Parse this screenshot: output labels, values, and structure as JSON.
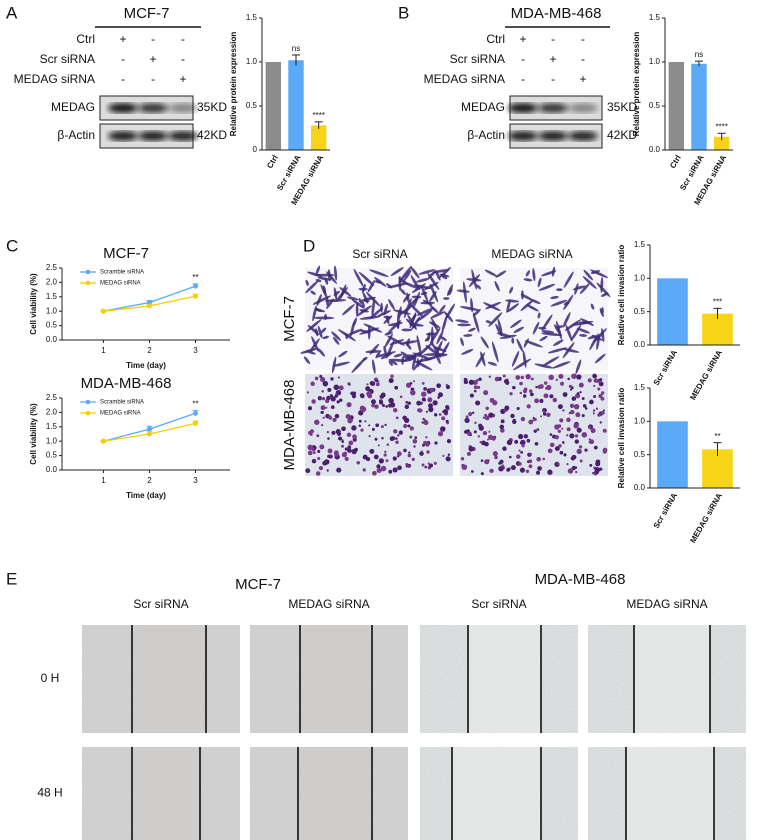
{
  "panels": {
    "A": {
      "label": "A",
      "title": "MCF-7",
      "rows": [
        "Ctrl",
        "Scr siRNA",
        "MEDAG siRNA"
      ],
      "signs": [
        [
          "+",
          "-",
          "-"
        ],
        [
          "-",
          "+",
          "-"
        ],
        [
          "-",
          "-",
          "+"
        ]
      ],
      "blots": [
        {
          "name": "MEDAG",
          "size": "35KD"
        },
        {
          "name": "β-Actin",
          "size": "42KD"
        }
      ]
    },
    "B": {
      "label": "B",
      "title": "MDA-MB-468",
      "rows": [
        "Ctrl",
        "Scr siRNA",
        "MEDAG siRNA"
      ],
      "signs": [
        [
          "+",
          "-",
          "-"
        ],
        [
          "-",
          "+",
          "-"
        ],
        [
          "-",
          "-",
          "+"
        ]
      ],
      "blots": [
        {
          "name": "MEDAG",
          "size": "35KD"
        },
        {
          "name": "β-Actin",
          "size": "42KD"
        }
      ]
    },
    "C": {
      "label": "C"
    },
    "D": {
      "label": "D",
      "columns": [
        "Scr siRNA",
        "MEDAG siRNA"
      ],
      "rows": [
        "MCF-7",
        "MDA-MB-468"
      ]
    },
    "E": {
      "label": "E",
      "groups": [
        "MCF-7",
        "MDA-MB-468"
      ],
      "columns": [
        "Scr siRNA",
        "MEDAG siRNA",
        "Scr siRNA",
        "MEDAG siRNA"
      ],
      "rows": [
        "0 H",
        "48 H"
      ]
    }
  },
  "chart_data": [
    {
      "type": "bar",
      "ylabel": "Relative protein expression",
      "categories": [
        "Ctrl",
        "Scr siRNA",
        "MEDAG siRNA"
      ],
      "values": [
        1.0,
        1.02,
        0.28
      ],
      "errors": [
        0,
        0.06,
        0.04
      ],
      "colors": [
        "#8c8c8c",
        "#5aaaf7",
        "#f7d417"
      ],
      "annotations": [
        {
          "index": 1,
          "text": "ns"
        },
        {
          "index": 2,
          "text": "****"
        }
      ],
      "ylim": [
        0,
        1.5
      ],
      "yticks": [
        0,
        0.5,
        {
          "value": 1,
          "label": "1.0"
        },
        1.5
      ]
    },
    {
      "type": "bar",
      "ylabel": "Relative protein expression",
      "categories": [
        "Ctrl",
        "Scr siRNA",
        "MEDAG siRNA"
      ],
      "values": [
        1.0,
        0.98,
        0.15
      ],
      "errors": [
        0,
        0.03,
        0.04
      ],
      "colors": [
        "#8c8c8c",
        "#5aaaf7",
        "#f7d417"
      ],
      "annotations": [
        {
          "index": 1,
          "text": "ns"
        },
        {
          "index": 2,
          "text": "****"
        }
      ],
      "ylim": [
        0,
        1.5
      ],
      "yticks": [
        {
          "value": 0,
          "label": "0.0"
        },
        0.5,
        {
          "value": 1,
          "label": "1.0"
        },
        1.5
      ]
    },
    {
      "type": "line",
      "title": "MCF-7",
      "xlabel": "Time (day)",
      "ylabel": "Cell viability (%)",
      "x": [
        1,
        2,
        3
      ],
      "xlim": [
        0.1,
        3.75
      ],
      "xticks": [
        1,
        2,
        3
      ],
      "ylim": [
        0,
        2.5
      ],
      "yticks": [
        {
          "value": 0,
          "label": "0.0"
        },
        0.5,
        {
          "value": 1,
          "label": "1.0"
        },
        1.5,
        {
          "value": 2,
          "label": "2.0"
        },
        2.5
      ],
      "series": [
        {
          "name": "Scramble siRNA",
          "color": "#5aaaf7",
          "values": [
            1.0,
            1.3,
            1.87
          ],
          "errors": [
            0.02,
            0.07,
            0.08
          ]
        },
        {
          "name": "MEDAG siRNA",
          "color": "#f5d000",
          "values": [
            1.0,
            1.18,
            1.52
          ],
          "errors": [
            0.02,
            0.05,
            0.07
          ]
        }
      ],
      "annotations": [
        {
          "x": 3,
          "text": "**"
        }
      ]
    },
    {
      "type": "line",
      "title": "MDA-MB-468",
      "xlabel": "Time (day)",
      "ylabel": "Cell viability (%)",
      "x": [
        1,
        2,
        3
      ],
      "xlim": [
        0.1,
        3.75
      ],
      "xticks": [
        1,
        2,
        3
      ],
      "ylim": [
        0,
        2.5
      ],
      "yticks": [
        {
          "value": 0,
          "label": "0.0"
        },
        0.5,
        {
          "value": 1,
          "label": "1.0"
        },
        1.5,
        {
          "value": 2,
          "label": "2.0"
        },
        2.5
      ],
      "series": [
        {
          "name": "Scramble siRNA",
          "color": "#5aaaf7",
          "values": [
            1.0,
            1.42,
            1.97
          ],
          "errors": [
            0.02,
            0.1,
            0.1
          ]
        },
        {
          "name": "MEDAG siRNA",
          "color": "#f5d000",
          "values": [
            1.0,
            1.25,
            1.62
          ],
          "errors": [
            0.02,
            0.08,
            0.08
          ]
        }
      ],
      "annotations": [
        {
          "x": 3,
          "text": "**"
        }
      ]
    },
    {
      "type": "bar",
      "ylabel": "Relative cell invasion ratio",
      "categories": [
        "Scr siRNA",
        "MEDAG siRNA"
      ],
      "values": [
        1.0,
        0.47
      ],
      "errors": [
        0,
        0.08
      ],
      "colors": [
        "#5aaaf7",
        "#f7d417"
      ],
      "annotations": [
        {
          "index": 1,
          "text": "***"
        }
      ],
      "ylim": [
        0,
        1.5
      ],
      "yticks": [
        {
          "value": 0,
          "label": "0.0"
        },
        0.5,
        {
          "value": 1,
          "label": "1.0"
        },
        1.5
      ]
    },
    {
      "type": "bar",
      "ylabel": "Relative cell invasion ratio",
      "categories": [
        "Scr siRNA",
        "MEDAG siRNA"
      ],
      "values": [
        1.0,
        0.58
      ],
      "errors": [
        0,
        0.1
      ],
      "colors": [
        "#5aaaf7",
        "#f7d417"
      ],
      "annotations": [
        {
          "index": 1,
          "text": "**"
        }
      ],
      "ylim": [
        0,
        1.5
      ],
      "yticks": [
        {
          "value": 0,
          "label": "0.0"
        },
        0.5,
        {
          "value": 1,
          "label": "1.0"
        },
        1.5
      ]
    }
  ]
}
